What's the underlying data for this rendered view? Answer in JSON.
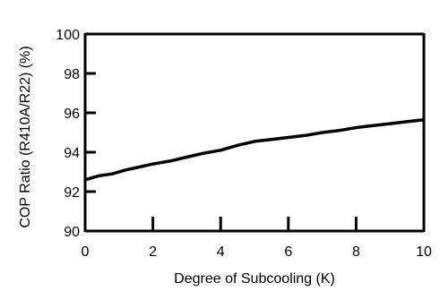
{
  "chart_data": {
    "type": "line",
    "title": "",
    "xlabel": "Degree of Subcooling (K)",
    "ylabel": "COP Ratio (R410A/R22) (%)",
    "xlim": [
      0,
      10
    ],
    "ylim": [
      90,
      100
    ],
    "xticks": [
      0,
      2,
      4,
      6,
      8,
      10
    ],
    "yticks": [
      90,
      92,
      94,
      96,
      98,
      100
    ],
    "xtick_labels": [
      "0",
      "2",
      "4",
      "6",
      "8",
      "10"
    ],
    "ytick_labels": [
      "90",
      "92",
      "94",
      "96",
      "98",
      "100"
    ],
    "grid": false,
    "legend": "none",
    "line_color": "#000000",
    "series": [
      {
        "x": [
          0,
          0.4,
          0.8,
          1.2,
          1.6,
          2.0,
          2.5,
          3.0,
          3.5,
          4.0,
          4.5,
          5.0,
          5.5,
          6.0,
          6.5,
          7.0,
          7.5,
          8.0,
          8.5,
          9.0,
          9.5,
          10.0
        ],
        "values": [
          92.6,
          92.8,
          92.9,
          93.1,
          93.25,
          93.4,
          93.55,
          93.75,
          93.95,
          94.1,
          94.35,
          94.55,
          94.65,
          94.75,
          94.85,
          95.0,
          95.1,
          95.25,
          95.35,
          95.45,
          95.55,
          95.65
        ]
      }
    ]
  }
}
